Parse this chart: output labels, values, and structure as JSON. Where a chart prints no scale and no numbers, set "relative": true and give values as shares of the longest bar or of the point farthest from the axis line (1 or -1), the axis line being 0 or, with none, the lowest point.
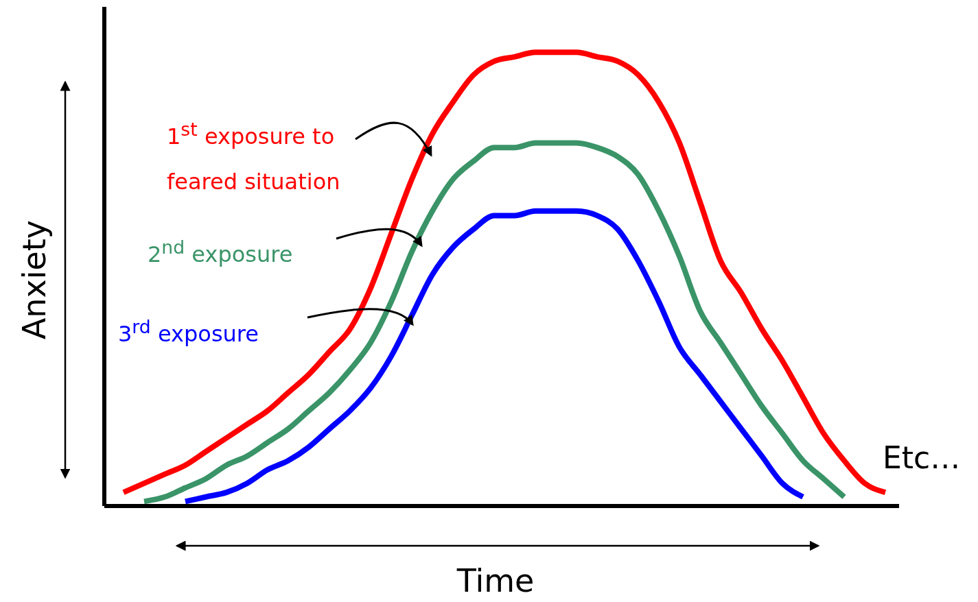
{
  "chart_data": {
    "type": "line",
    "relative": true,
    "xlabel": "Time",
    "ylabel": "Anxiety",
    "annotations": [
      "Etc…"
    ],
    "categories": [
      null,
      null,
      null,
      null,
      null,
      null,
      null,
      null,
      null,
      null,
      null,
      null,
      null,
      null,
      null,
      null,
      null,
      null,
      null,
      null,
      null,
      null,
      null,
      null,
      null,
      null,
      null,
      null,
      null,
      null,
      null,
      null,
      null,
      null,
      null,
      null,
      null,
      null
    ],
    "series": [
      {
        "name": "1$^{st}$ exposure to feared situation",
        "color": "#ff0000",
        "values": [
          0.03,
          0.05,
          0.07,
          0.09,
          0.12,
          0.15,
          0.18,
          0.21,
          0.25,
          0.29,
          0.34,
          0.39,
          0.48,
          0.6,
          0.72,
          0.82,
          0.89,
          0.95,
          0.98,
          0.99,
          1,
          1,
          1,
          0.99,
          0.98,
          0.95,
          0.89,
          0.8,
          0.67,
          0.54,
          0.47,
          0.39,
          0.32,
          0.24,
          0.16,
          0.1,
          0.05,
          0.03
        ]
      },
      {
        "name": "2$^{nd}$ exposure",
        "color": "#3a9468",
        "values": [
          null,
          0.01,
          0.02,
          0.04,
          0.06,
          0.09,
          0.11,
          0.14,
          0.17,
          0.21,
          0.25,
          0.3,
          0.36,
          0.45,
          0.56,
          0.65,
          0.72,
          0.76,
          0.79,
          0.79,
          0.8,
          0.8,
          0.8,
          0.79,
          0.77,
          0.73,
          0.65,
          0.55,
          0.43,
          0.36,
          0.29,
          0.22,
          0.16,
          0.1,
          0.06,
          0.02,
          null,
          null
        ]
      },
      {
        "name": "3$^{rd}$ exposure",
        "color": "#0000ff",
        "values": [
          null,
          null,
          null,
          0.01,
          0.02,
          0.03,
          0.05,
          0.08,
          0.1,
          0.13,
          0.17,
          0.21,
          0.26,
          0.33,
          0.42,
          0.51,
          0.57,
          0.61,
          0.64,
          0.64,
          0.65,
          0.65,
          0.65,
          0.64,
          0.61,
          0.54,
          0.45,
          0.35,
          0.29,
          0.23,
          0.17,
          0.11,
          0.05,
          0.02,
          null,
          null,
          null,
          null
        ]
      }
    ]
  }
}
